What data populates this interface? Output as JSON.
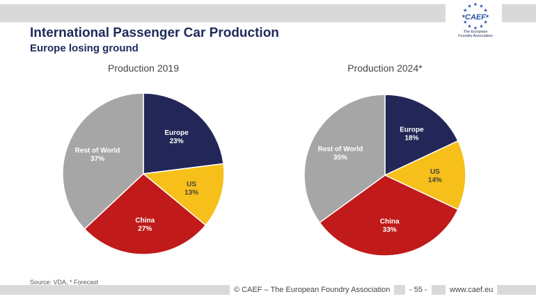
{
  "header": {
    "title": "International Passenger Car Production",
    "subtitle": "Europe losing ground"
  },
  "logo": {
    "text": "CAEF",
    "caption_line1": "The European",
    "caption_line2": "Foundry Association"
  },
  "chart_data": [
    {
      "type": "pie",
      "title": "Production 2019",
      "slices": [
        {
          "label": "Europe",
          "value": 23,
          "display": "23%",
          "color": "#232757"
        },
        {
          "label": "US",
          "value": 13,
          "display": "13%",
          "color": "#f7bf1a"
        },
        {
          "label": "China",
          "value": 27,
          "display": "27%",
          "color": "#c01a1a"
        },
        {
          "label": "Rest of World",
          "value": 37,
          "display": "37%",
          "color": "#a6a6a6"
        }
      ]
    },
    {
      "type": "pie",
      "title": "Production 2024*",
      "slices": [
        {
          "label": "Europe",
          "value": 18,
          "display": "18%",
          "color": "#232757"
        },
        {
          "label": "US",
          "value": 14,
          "display": "14%",
          "color": "#f7bf1a"
        },
        {
          "label": "China",
          "value": 33,
          "display": "33%",
          "color": "#c01a1a"
        },
        {
          "label": "Rest of World",
          "value": 35,
          "display": "35%",
          "color": "#a6a6a6"
        }
      ]
    }
  ],
  "source": "Source: VDA, * Forecast",
  "footer": {
    "copyright": "© CAEF – The European Foundry Association",
    "page": "- 55 -",
    "url": "www.caef.eu"
  }
}
